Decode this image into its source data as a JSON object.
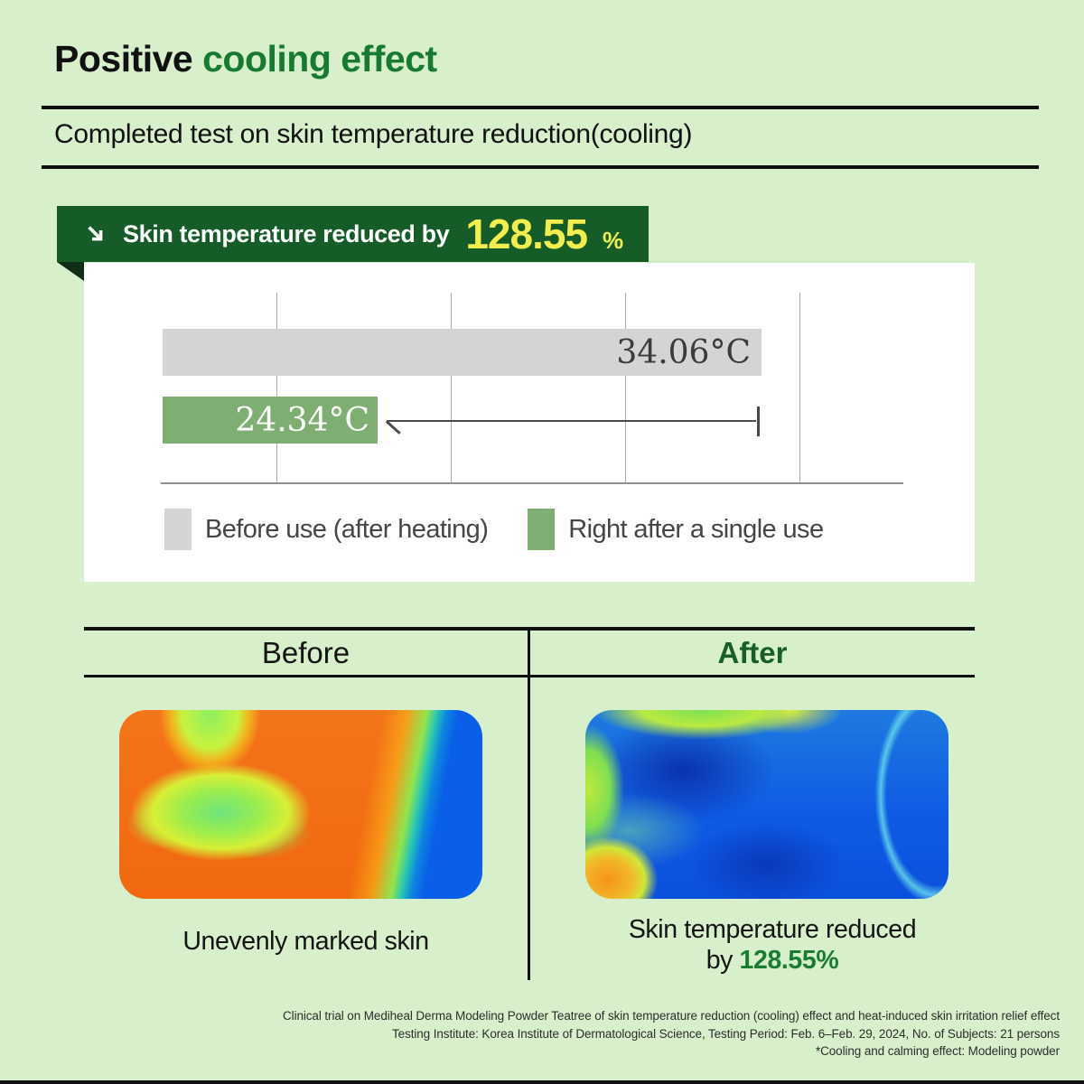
{
  "title": {
    "prefix": "Positive ",
    "highlight": "cooling effect"
  },
  "subtitle": "Completed test on skin temperature reduction(cooling)",
  "badge": {
    "icon": "arrow-down-right-icon",
    "label": "Skin temperature reduced by",
    "value": "128.55",
    "percent_sign": "%"
  },
  "chart_data": {
    "type": "bar",
    "orientation": "horizontal",
    "title": "",
    "categories": [
      "Before use (after heating)",
      "Right after a single use"
    ],
    "values": [
      34.06,
      24.34
    ],
    "value_labels": [
      "34.06°C",
      "24.34°C"
    ],
    "unit": "°C",
    "series_colors": [
      "#d4d4d4",
      "#7fae72"
    ],
    "xlim": [
      18.9,
      37.7
    ],
    "gridline_pcts": [
      15.6,
      39.1,
      62.5,
      86.0
    ],
    "grid": "vertical unlabeled gridlines",
    "legend_position": "bottom",
    "annotation": "arrow from end of 24.34°C bar to end of 34.06°C bar showing reduction"
  },
  "comparison": {
    "before_label": "Before",
    "after_label": "After",
    "before_caption": "Unevenly marked skin",
    "after_caption_line1": "Skin temperature reduced",
    "after_caption_prefix": "by ",
    "after_caption_value": "128.55%"
  },
  "footnotes": [
    "Clinical trial on Mediheal Derma Modeling Powder Teatree of skin temperature reduction (cooling) effect and heat-induced skin irritation relief effect",
    "Testing Institute: Korea Institute of Dermatological Science, Testing Period: Feb. 6–Feb. 29, 2024, No. of Subjects: 21 persons",
    "*Cooling and calming effect: Modeling powder"
  ],
  "colors": {
    "background_green": "#d7efca",
    "title_green": "#177a30",
    "badge_green": "#155c29",
    "badge_fold_green": "#0e2f16",
    "highlight_yellow": "#f1ee4e",
    "bar_gray": "#d4d4d4",
    "bar_green": "#7fae72",
    "after_label_green": "#185e2b",
    "caption_value_green": "#1a7c32"
  }
}
